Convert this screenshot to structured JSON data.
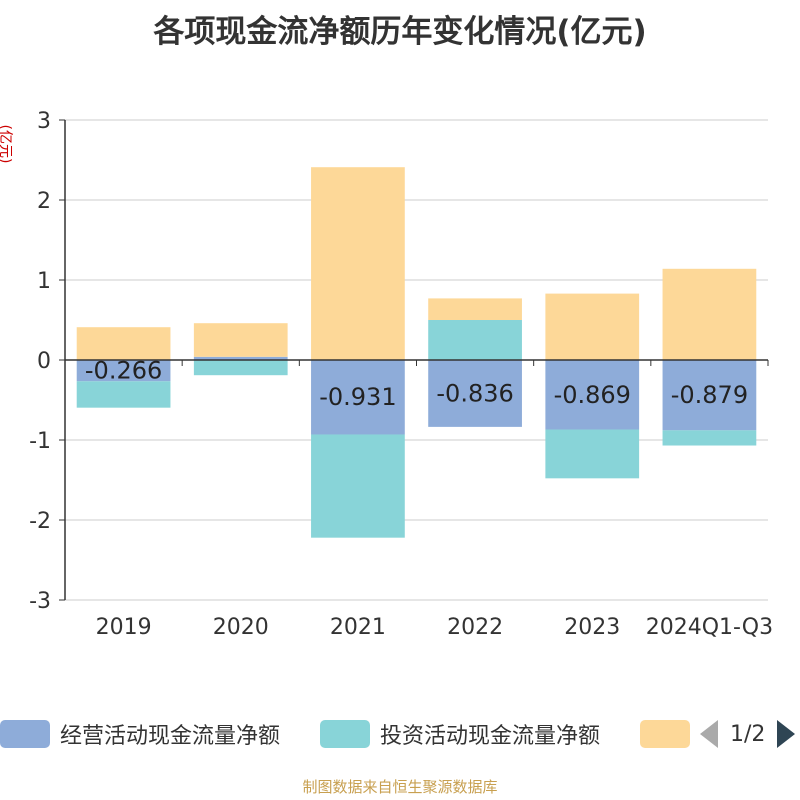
{
  "chart_data": {
    "type": "bar",
    "stacked": true,
    "title": "各项现金流净额历年变化情况(亿元)",
    "ylabel": "(亿元)",
    "categories": [
      "2019",
      "2020",
      "2021",
      "2022",
      "2023",
      "2024Q1-Q3"
    ],
    "ylim": [
      -3,
      3
    ],
    "yticks": [
      3,
      2,
      1,
      0,
      -1,
      -2,
      -3
    ],
    "grid": true,
    "legend_position": "bottom",
    "series": [
      {
        "name": "经营活动现金流量净额",
        "color": "#8eacd9",
        "values": [
          -0.266,
          0.04,
          -0.931,
          -0.836,
          -0.869,
          -0.879
        ],
        "labels": [
          "-0.266",
          "",
          "-0.931",
          "-0.836",
          "-0.869",
          "-0.879"
        ]
      },
      {
        "name": "投资活动现金流量净额",
        "color": "#88d4d8",
        "values": [
          -0.33,
          -0.19,
          -1.29,
          0.5,
          -0.61,
          -0.19
        ]
      },
      {
        "name": "",
        "color": "#fdd898",
        "values": [
          0.41,
          0.42,
          2.41,
          0.27,
          0.83,
          1.14
        ]
      }
    ],
    "legend_page": "1/2"
  },
  "source_text": "制图数据来自恒生聚源数据库"
}
